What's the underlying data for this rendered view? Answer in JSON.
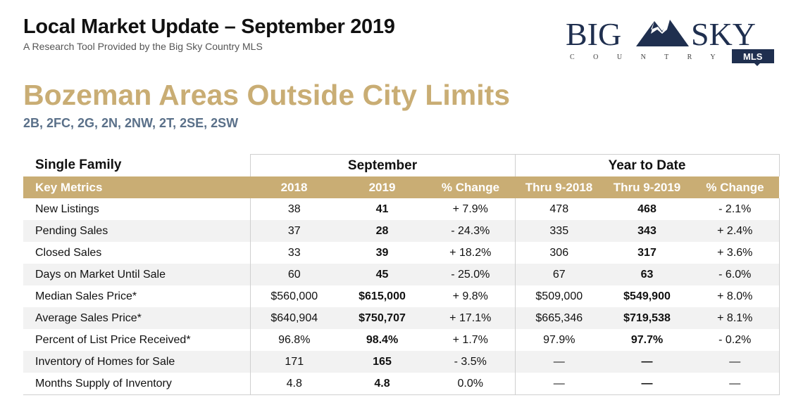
{
  "header": {
    "title": "Local Market Update – September 2019",
    "subtitle": "A Research Tool Provided by the Big Sky Country MLS"
  },
  "logo": {
    "word_left": "BIG",
    "word_right": "SKY",
    "tagline": "C O U N T R Y",
    "badge": "MLS"
  },
  "area": {
    "title": "Bozeman Areas Outside City Limits",
    "codes": "2B, 2FC, 2G, 2N, 2NW, 2T, 2SE, 2SW"
  },
  "table": {
    "category": "Single Family",
    "group_september": "September",
    "group_ytd": "Year to Date",
    "columns": [
      "Key Metrics",
      "2018",
      "2019",
      "% Change",
      "Thru 9-2018",
      "Thru 9-2019",
      "% Change"
    ],
    "rows": [
      {
        "metric": "New Listings",
        "sep_2018": "38",
        "sep_2019": "41",
        "sep_change": "+ 7.9%",
        "ytd_2018": "478",
        "ytd_2019": "468",
        "ytd_change": "- 2.1%"
      },
      {
        "metric": "Pending Sales",
        "sep_2018": "37",
        "sep_2019": "28",
        "sep_change": "- 24.3%",
        "ytd_2018": "335",
        "ytd_2019": "343",
        "ytd_change": "+ 2.4%"
      },
      {
        "metric": "Closed Sales",
        "sep_2018": "33",
        "sep_2019": "39",
        "sep_change": "+ 18.2%",
        "ytd_2018": "306",
        "ytd_2019": "317",
        "ytd_change": "+ 3.6%"
      },
      {
        "metric": "Days on Market Until Sale",
        "sep_2018": "60",
        "sep_2019": "45",
        "sep_change": "- 25.0%",
        "ytd_2018": "67",
        "ytd_2019": "63",
        "ytd_change": "- 6.0%"
      },
      {
        "metric": "Median Sales Price*",
        "sep_2018": "$560,000",
        "sep_2019": "$615,000",
        "sep_change": "+ 9.8%",
        "ytd_2018": "$509,000",
        "ytd_2019": "$549,900",
        "ytd_change": "+ 8.0%"
      },
      {
        "metric": "Average Sales Price*",
        "sep_2018": "$640,904",
        "sep_2019": "$750,707",
        "sep_change": "+ 17.1%",
        "ytd_2018": "$665,346",
        "ytd_2019": "$719,538",
        "ytd_change": "+ 8.1%"
      },
      {
        "metric": "Percent of List Price Received*",
        "sep_2018": "96.8%",
        "sep_2019": "98.4%",
        "sep_change": "+ 1.7%",
        "ytd_2018": "97.9%",
        "ytd_2019": "97.7%",
        "ytd_change": "- 0.2%"
      },
      {
        "metric": "Inventory of Homes for Sale",
        "sep_2018": "171",
        "sep_2019": "165",
        "sep_change": "- 3.5%",
        "ytd_2018": "—",
        "ytd_2019": "—",
        "ytd_change": "—"
      },
      {
        "metric": "Months Supply of Inventory",
        "sep_2018": "4.8",
        "sep_2019": "4.8",
        "sep_change": "0.0%",
        "ytd_2018": "—",
        "ytd_2019": "—",
        "ytd_change": "—"
      }
    ]
  },
  "colors": {
    "gold": "#c9ad74",
    "navy": "#1f2f4f",
    "slate_blue": "#5a7089",
    "row_shade": "#f2f2f2"
  }
}
